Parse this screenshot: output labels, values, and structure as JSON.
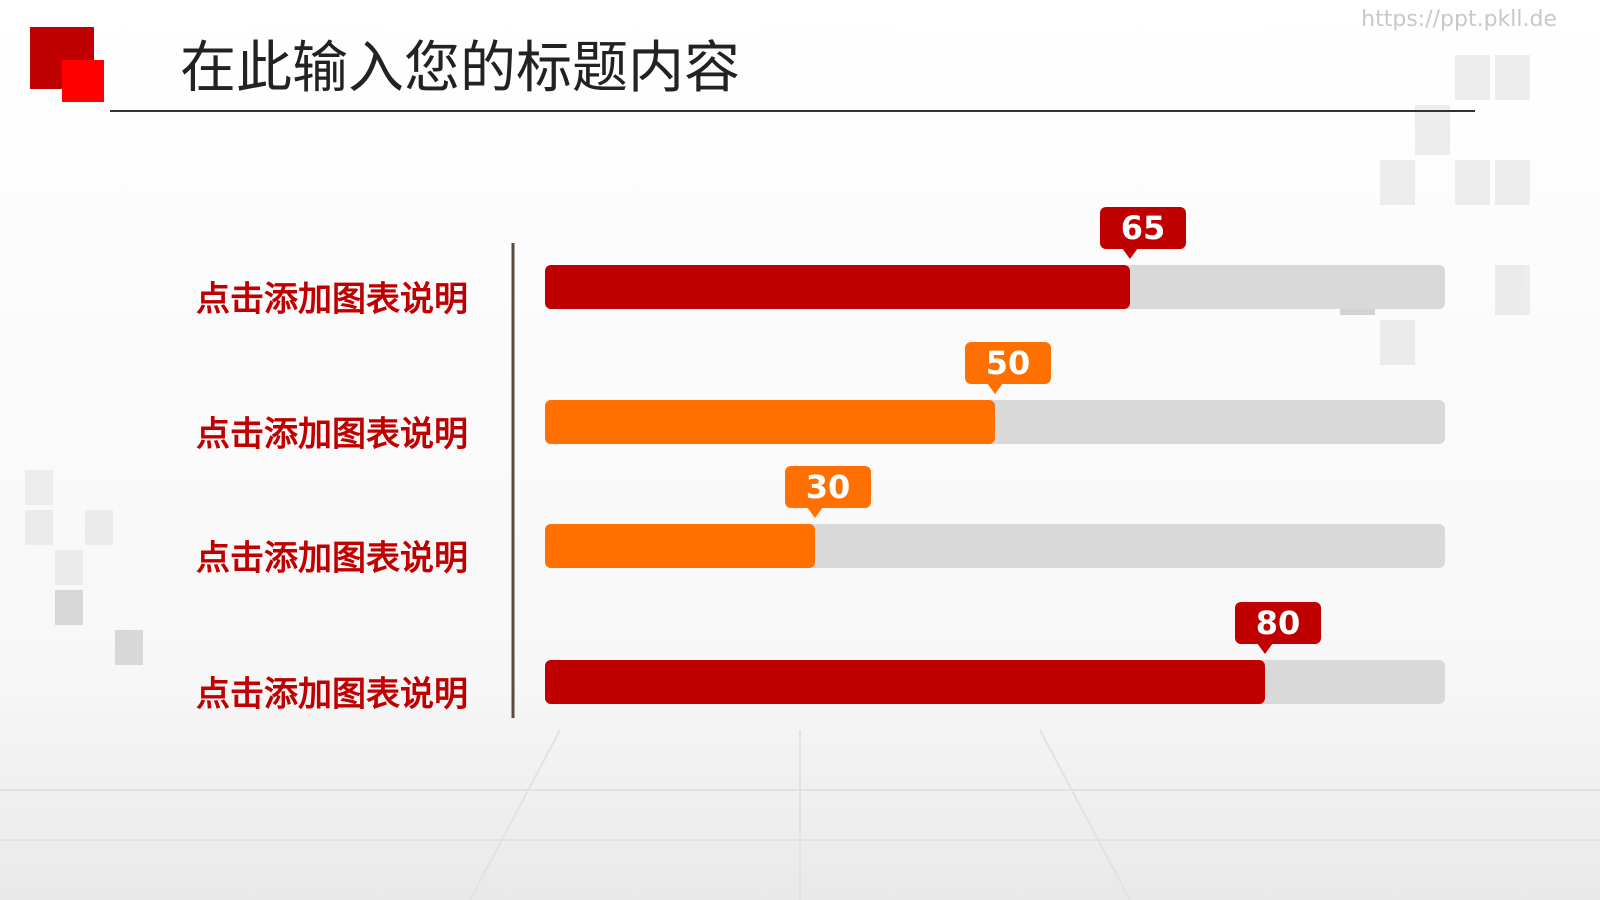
{
  "chart_data": {
    "type": "bar",
    "orientation": "horizontal",
    "title": "在此输入您的标题内容",
    "source": "https://ppt.pkll.de",
    "categories": [
      "点击添加图表说明",
      "点击添加图表说明",
      "点击添加图表说明",
      "点击添加图表说明"
    ],
    "values": [
      65,
      50,
      30,
      80
    ],
    "colors": [
      "#c00000",
      "#ff7000",
      "#ff7000",
      "#c00000"
    ],
    "track_color": "#d9d9d9",
    "xlim": [
      0,
      100
    ]
  }
}
